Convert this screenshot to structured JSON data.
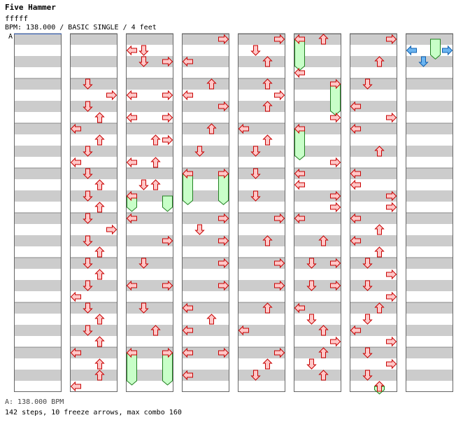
{
  "header": {
    "title": "Five Hammer",
    "subtitle": "fffff",
    "info": "BPM: 138.000 / BASIC SINGLE / 4 feet",
    "bpm_marker": "A"
  },
  "footer": {
    "bpm": "A: 138.000 BPM",
    "stats": "142 steps, 10 freeze arrows, max combo 160"
  },
  "colors": {
    "note": "#ffc8c8",
    "note_stroke": "#c80000",
    "blue_note": "#6ab4f0",
    "blue_stroke": "#1060b0",
    "freeze": "#c8ffc8",
    "freeze_stroke": "#208020",
    "stripe": "#cccccc"
  },
  "chart_data": {
    "type": "table",
    "lanes": [
      "left",
      "down",
      "up",
      "right"
    ],
    "columns": [
      {
        "notes": [],
        "freezes": []
      },
      {
        "notes": [
          {
            "m": 1,
            "b": 0,
            "l": "down"
          },
          {
            "m": 1,
            "b": 1,
            "l": "right"
          },
          {
            "m": 1,
            "b": 2,
            "l": "down"
          },
          {
            "m": 1,
            "b": 3,
            "l": "up"
          },
          {
            "m": 2,
            "b": 0,
            "l": "left"
          },
          {
            "m": 2,
            "b": 1,
            "l": "up"
          },
          {
            "m": 2,
            "b": 2,
            "l": "down"
          },
          {
            "m": 2,
            "b": 3,
            "l": "left"
          },
          {
            "m": 3,
            "b": 0,
            "l": "down"
          },
          {
            "m": 3,
            "b": 1,
            "l": "up"
          },
          {
            "m": 3,
            "b": 2,
            "l": "down"
          },
          {
            "m": 3,
            "b": 3,
            "l": "up"
          },
          {
            "m": 4,
            "b": 0,
            "l": "down"
          },
          {
            "m": 4,
            "b": 1,
            "l": "right"
          },
          {
            "m": 4,
            "b": 2,
            "l": "down"
          },
          {
            "m": 4,
            "b": 3,
            "l": "up"
          },
          {
            "m": 5,
            "b": 0,
            "l": "down"
          },
          {
            "m": 5,
            "b": 1,
            "l": "up"
          },
          {
            "m": 5,
            "b": 2,
            "l": "down"
          },
          {
            "m": 5,
            "b": 3,
            "l": "left"
          },
          {
            "m": 6,
            "b": 0,
            "l": "down"
          },
          {
            "m": 6,
            "b": 1,
            "l": "up"
          },
          {
            "m": 6,
            "b": 2,
            "l": "down"
          },
          {
            "m": 6,
            "b": 3,
            "l": "up"
          },
          {
            "m": 7,
            "b": 0,
            "l": "left"
          },
          {
            "m": 7,
            "b": 1,
            "l": "up"
          },
          {
            "m": 7,
            "b": 2,
            "l": "up"
          },
          {
            "m": 7,
            "b": 3,
            "l": "left"
          }
        ],
        "freezes": []
      },
      {
        "notes": [
          {
            "m": 0,
            "b": 1,
            "l": "left"
          },
          {
            "m": 0,
            "b": 1,
            "l": "down"
          },
          {
            "m": 0,
            "b": 2,
            "l": "down"
          },
          {
            "m": 0,
            "b": 2,
            "l": "right"
          },
          {
            "m": 1,
            "b": 1,
            "l": "left"
          },
          {
            "m": 1,
            "b": 1,
            "l": "right"
          },
          {
            "m": 1,
            "b": 3,
            "l": "left"
          },
          {
            "m": 1,
            "b": 3,
            "l": "right"
          },
          {
            "m": 2,
            "b": 1,
            "l": "up"
          },
          {
            "m": 2,
            "b": 1,
            "l": "right"
          },
          {
            "m": 2,
            "b": 3,
            "l": "left"
          },
          {
            "m": 2,
            "b": 3,
            "l": "up"
          },
          {
            "m": 3,
            "b": 1,
            "l": "down"
          },
          {
            "m": 3,
            "b": 1,
            "l": "up"
          },
          {
            "m": 3,
            "b": 2,
            "l": "left"
          },
          {
            "m": 4,
            "b": 0,
            "l": "left"
          },
          {
            "m": 4,
            "b": 2,
            "l": "right"
          },
          {
            "m": 5,
            "b": 0,
            "l": "down"
          },
          {
            "m": 5,
            "b": 2,
            "l": "left"
          },
          {
            "m": 5,
            "b": 2,
            "l": "right"
          },
          {
            "m": 6,
            "b": 0,
            "l": "down"
          },
          {
            "m": 6,
            "b": 2,
            "l": "up"
          },
          {
            "m": 7,
            "b": 0,
            "l": "left"
          },
          {
            "m": 7,
            "b": 0,
            "l": "right"
          }
        ],
        "freezes": [
          {
            "m": 3,
            "b": 2,
            "l": "left",
            "len": 1
          },
          {
            "m": 3,
            "b": 2,
            "l": "right",
            "len": 1
          },
          {
            "m": 7,
            "b": 0,
            "l": "left",
            "len": 2.5
          },
          {
            "m": 7,
            "b": 0,
            "l": "right",
            "len": 2.5
          }
        ]
      },
      {
        "notes": [
          {
            "m": 0,
            "b": 0,
            "l": "right"
          },
          {
            "m": 0,
            "b": 2,
            "l": "left"
          },
          {
            "m": 1,
            "b": 0,
            "l": "up"
          },
          {
            "m": 1,
            "b": 1,
            "l": "left"
          },
          {
            "m": 1,
            "b": 2,
            "l": "right"
          },
          {
            "m": 2,
            "b": 0,
            "l": "up"
          },
          {
            "m": 2,
            "b": 2,
            "l": "down"
          },
          {
            "m": 3,
            "b": 0,
            "l": "left"
          },
          {
            "m": 3,
            "b": 0,
            "l": "right"
          },
          {
            "m": 4,
            "b": 0,
            "l": "right"
          },
          {
            "m": 4,
            "b": 1,
            "l": "down"
          },
          {
            "m": 4,
            "b": 2,
            "l": "right"
          },
          {
            "m": 5,
            "b": 0,
            "l": "right"
          },
          {
            "m": 5,
            "b": 2,
            "l": "right"
          },
          {
            "m": 6,
            "b": 0,
            "l": "left"
          },
          {
            "m": 6,
            "b": 1,
            "l": "up"
          },
          {
            "m": 6,
            "b": 2,
            "l": "left"
          },
          {
            "m": 7,
            "b": 0,
            "l": "left"
          },
          {
            "m": 7,
            "b": 0,
            "l": "right"
          },
          {
            "m": 7,
            "b": 2,
            "l": "left"
          }
        ],
        "freezes": [
          {
            "m": 3,
            "b": 0,
            "l": "left",
            "len": 2.4
          },
          {
            "m": 3,
            "b": 0,
            "l": "right",
            "len": 2.4
          }
        ]
      },
      {
        "notes": [
          {
            "m": 0,
            "b": 0,
            "l": "right"
          },
          {
            "m": 0,
            "b": 1,
            "l": "down"
          },
          {
            "m": 0,
            "b": 2,
            "l": "up"
          },
          {
            "m": 1,
            "b": 0,
            "l": "up"
          },
          {
            "m": 1,
            "b": 1,
            "l": "right"
          },
          {
            "m": 1,
            "b": 2,
            "l": "up"
          },
          {
            "m": 2,
            "b": 0,
            "l": "left"
          },
          {
            "m": 2,
            "b": 1,
            "l": "up"
          },
          {
            "m": 2,
            "b": 2,
            "l": "down"
          },
          {
            "m": 3,
            "b": 0,
            "l": "down"
          },
          {
            "m": 3,
            "b": 2,
            "l": "down"
          },
          {
            "m": 4,
            "b": 0,
            "l": "right"
          },
          {
            "m": 4,
            "b": 2,
            "l": "up"
          },
          {
            "m": 5,
            "b": 0,
            "l": "right"
          },
          {
            "m": 5,
            "b": 2,
            "l": "right"
          },
          {
            "m": 6,
            "b": 0,
            "l": "up"
          },
          {
            "m": 6,
            "b": 2,
            "l": "left"
          },
          {
            "m": 7,
            "b": 0,
            "l": "right"
          },
          {
            "m": 7,
            "b": 1,
            "l": "up"
          },
          {
            "m": 7,
            "b": 2,
            "l": "down"
          }
        ],
        "freezes": []
      },
      {
        "notes": [
          {
            "m": 0,
            "b": 0,
            "l": "left"
          },
          {
            "m": 0,
            "b": 0,
            "l": "up"
          },
          {
            "m": 0,
            "b": 3,
            "l": "left"
          },
          {
            "m": 1,
            "b": 0,
            "l": "right"
          },
          {
            "m": 1,
            "b": 3,
            "l": "right"
          },
          {
            "m": 2,
            "b": 0,
            "l": "left"
          },
          {
            "m": 2,
            "b": 3,
            "l": "right"
          },
          {
            "m": 3,
            "b": 0,
            "l": "left"
          },
          {
            "m": 3,
            "b": 1,
            "l": "left"
          },
          {
            "m": 3,
            "b": 2,
            "l": "right"
          },
          {
            "m": 3,
            "b": 3,
            "l": "right"
          },
          {
            "m": 4,
            "b": 0,
            "l": "left"
          },
          {
            "m": 4,
            "b": 2,
            "l": "up"
          },
          {
            "m": 5,
            "b": 0,
            "l": "down"
          },
          {
            "m": 5,
            "b": 0,
            "l": "right"
          },
          {
            "m": 5,
            "b": 2,
            "l": "down"
          },
          {
            "m": 5,
            "b": 2,
            "l": "right"
          },
          {
            "m": 6,
            "b": 0,
            "l": "left"
          },
          {
            "m": 6,
            "b": 1,
            "l": "down"
          },
          {
            "m": 6,
            "b": 2,
            "l": "up"
          },
          {
            "m": 6,
            "b": 3,
            "l": "right"
          },
          {
            "m": 7,
            "b": 0,
            "l": "up"
          },
          {
            "m": 7,
            "b": 1,
            "l": "down"
          },
          {
            "m": 7,
            "b": 2,
            "l": "up"
          }
        ],
        "freezes": [
          {
            "m": 0,
            "b": 0,
            "l": "left",
            "len": 2.4
          },
          {
            "m": 1,
            "b": 0,
            "l": "right",
            "len": 2.4
          },
          {
            "m": 2,
            "b": 0,
            "l": "left",
            "len": 2.4
          }
        ]
      },
      {
        "notes": [
          {
            "m": 0,
            "b": 0,
            "l": "right"
          },
          {
            "m": 0,
            "b": 2,
            "l": "up"
          },
          {
            "m": 1,
            "b": 0,
            "l": "down"
          },
          {
            "m": 1,
            "b": 2,
            "l": "left"
          },
          {
            "m": 1,
            "b": 3,
            "l": "right"
          },
          {
            "m": 2,
            "b": 0,
            "l": "left"
          },
          {
            "m": 2,
            "b": 2,
            "l": "up"
          },
          {
            "m": 3,
            "b": 0,
            "l": "left"
          },
          {
            "m": 3,
            "b": 1,
            "l": "left"
          },
          {
            "m": 3,
            "b": 2,
            "l": "right"
          },
          {
            "m": 3,
            "b": 3,
            "l": "right"
          },
          {
            "m": 4,
            "b": 0,
            "l": "left"
          },
          {
            "m": 4,
            "b": 1,
            "l": "up"
          },
          {
            "m": 4,
            "b": 2,
            "l": "left"
          },
          {
            "m": 4,
            "b": 3,
            "l": "up"
          },
          {
            "m": 5,
            "b": 0,
            "l": "down"
          },
          {
            "m": 5,
            "b": 1,
            "l": "right"
          },
          {
            "m": 5,
            "b": 2,
            "l": "down"
          },
          {
            "m": 5,
            "b": 3,
            "l": "right"
          },
          {
            "m": 6,
            "b": 0,
            "l": "up"
          },
          {
            "m": 6,
            "b": 1,
            "l": "down"
          },
          {
            "m": 6,
            "b": 2,
            "l": "left"
          },
          {
            "m": 6,
            "b": 3,
            "l": "right"
          },
          {
            "m": 7,
            "b": 0,
            "l": "down"
          },
          {
            "m": 7,
            "b": 1,
            "l": "right"
          },
          {
            "m": 7,
            "b": 2,
            "l": "down"
          },
          {
            "m": 7,
            "b": 3,
            "l": "up"
          }
        ],
        "freezes": [
          {
            "m": 7,
            "b": 3,
            "l": "up",
            "len": 0.3
          }
        ]
      },
      {
        "notes": [
          {
            "m": 0,
            "b": 1,
            "l": "left"
          },
          {
            "m": 0,
            "b": 1,
            "l": "right"
          },
          {
            "m": 0,
            "b": 2,
            "l": "down"
          }
        ],
        "freezes": [
          {
            "m": 0,
            "b": 0,
            "l": "up",
            "len": 1.4
          }
        ],
        "blue": true
      }
    ]
  }
}
